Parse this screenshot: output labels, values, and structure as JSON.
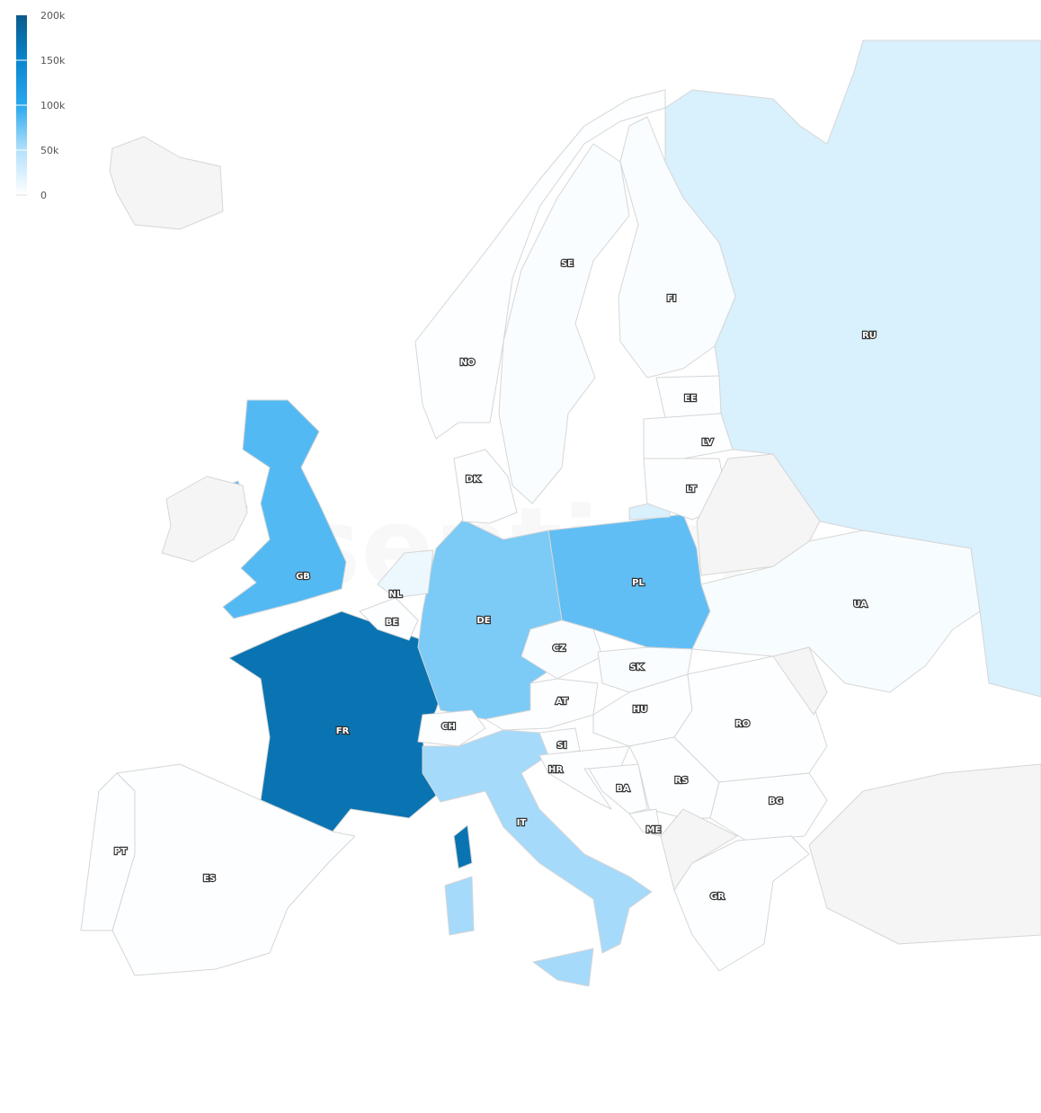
{
  "map": {
    "watermark": "sentione",
    "legend": {
      "ticks": [
        "200k",
        "150k",
        "100k",
        "50k",
        "0"
      ],
      "min": 0,
      "max": 200000,
      "colors": [
        "#ffffff",
        "#b3e0fb",
        "#2aa8ef",
        "#0a86cc",
        "#0b5a8a"
      ]
    },
    "no_data_color": "#f5f5f5",
    "countries": [
      {
        "code": "FR",
        "value": 170000,
        "label": "FR"
      },
      {
        "code": "GB",
        "value": 85000,
        "label": "GB"
      },
      {
        "code": "PL",
        "value": 80000,
        "label": "PL"
      },
      {
        "code": "DE",
        "value": 70000,
        "label": "DE"
      },
      {
        "code": "IT",
        "value": 55000,
        "label": "IT"
      },
      {
        "code": "RU",
        "value": 25000,
        "label": "RU"
      },
      {
        "code": "NL",
        "value": 12000,
        "label": "NL"
      },
      {
        "code": "UA",
        "value": 5000,
        "label": "UA"
      },
      {
        "code": "SE",
        "value": 3000,
        "label": "SE"
      },
      {
        "code": "FI",
        "value": 3000,
        "label": "FI"
      },
      {
        "code": "NO",
        "value": 2000,
        "label": "NO"
      },
      {
        "code": "CZ",
        "value": 3000,
        "label": "CZ"
      },
      {
        "code": "SK",
        "value": 3000,
        "label": "SK"
      },
      {
        "code": "DK",
        "value": 1000,
        "label": "DK"
      },
      {
        "code": "EE",
        "value": 1000,
        "label": "EE"
      },
      {
        "code": "LV",
        "value": 1000,
        "label": "LV"
      },
      {
        "code": "LT",
        "value": 1000,
        "label": "LT"
      },
      {
        "code": "BE",
        "value": 1000,
        "label": "BE"
      },
      {
        "code": "CH",
        "value": 1000,
        "label": "CH"
      },
      {
        "code": "AT",
        "value": 1000,
        "label": "AT"
      },
      {
        "code": "HU",
        "value": 1000,
        "label": "HU"
      },
      {
        "code": "SI",
        "value": 1000,
        "label": "SI"
      },
      {
        "code": "HR",
        "value": 1000,
        "label": "HR"
      },
      {
        "code": "BA",
        "value": 1000,
        "label": "BA"
      },
      {
        "code": "RS",
        "value": 1000,
        "label": "RS"
      },
      {
        "code": "ME",
        "value": 1000,
        "label": "ME"
      },
      {
        "code": "RO",
        "value": 1000,
        "label": "RO"
      },
      {
        "code": "BG",
        "value": 1000,
        "label": "BG"
      },
      {
        "code": "GR",
        "value": 1000,
        "label": "GR"
      },
      {
        "code": "ES",
        "value": 1000,
        "label": "ES"
      },
      {
        "code": "PT",
        "value": 1000,
        "label": "PT"
      },
      {
        "code": "IS",
        "value": null,
        "label": ""
      },
      {
        "code": "IE",
        "value": null,
        "label": ""
      },
      {
        "code": "BY",
        "value": null,
        "label": ""
      },
      {
        "code": "MD",
        "value": null,
        "label": ""
      },
      {
        "code": "AL",
        "value": null,
        "label": ""
      },
      {
        "code": "TR",
        "value": null,
        "label": ""
      }
    ]
  }
}
